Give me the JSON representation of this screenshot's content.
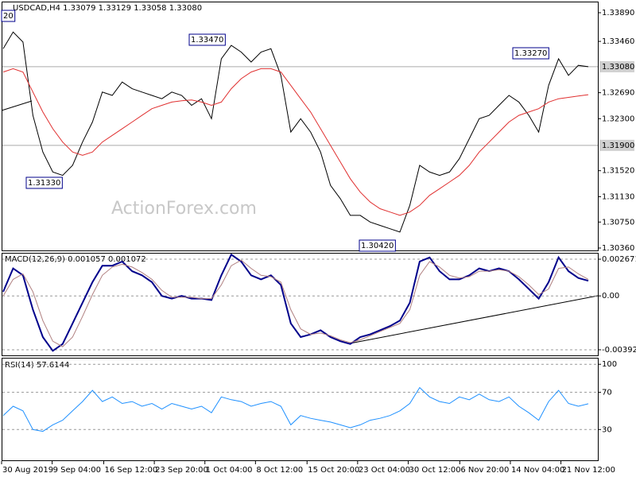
{
  "chart_data": [
    {
      "type": "line",
      "title": "USDCAD,H4 1.33079 1.33129 1.33058 1.33080",
      "watermark": "ActionForex.com",
      "ylim": [
        1.30324,
        1.34057
      ],
      "xlim": [
        0,
        59
      ],
      "yticks": [
        {
          "value": 1.3389,
          "label": "1.33890"
        },
        {
          "value": 1.3346,
          "label": "1.33460"
        },
        {
          "value": 1.3269,
          "label": "1.32690"
        },
        {
          "value": 1.323,
          "label": "1.32300"
        },
        {
          "value": 1.3152,
          "label": "1.31520"
        },
        {
          "value": 1.3113,
          "label": "1.31130"
        },
        {
          "value": 1.3075,
          "label": "1.30750"
        },
        {
          "value": 1.3036,
          "label": "1.30360"
        }
      ],
      "hlines": [
        {
          "value": 1.3308,
          "label": "1.33080"
        },
        {
          "value": 1.319,
          "label": "1.31900"
        }
      ],
      "annotations": [
        "20",
        "1.33470",
        "1.31330",
        "1.30420",
        "1.33270"
      ],
      "series": [
        {
          "color": "#000000",
          "values": [
            1.3335,
            1.336,
            1.3345,
            1.3235,
            1.318,
            1.315,
            1.3145,
            1.316,
            1.3195,
            1.3225,
            1.327,
            1.3265,
            1.3285,
            1.3275,
            1.327,
            1.3265,
            1.326,
            1.327,
            1.3265,
            1.325,
            1.326,
            1.323,
            1.332,
            1.334,
            1.333,
            1.3315,
            1.333,
            1.3335,
            1.3295,
            1.321,
            1.323,
            1.321,
            1.318,
            1.313,
            1.311,
            1.3085,
            1.3085,
            1.3075,
            1.307,
            1.3065,
            1.306,
            1.31,
            1.316,
            1.315,
            1.3145,
            1.315,
            1.317,
            1.32,
            1.323,
            1.3235,
            1.325,
            1.3265,
            1.3255,
            1.3235,
            1.321,
            1.328,
            1.332,
            1.3295,
            1.331,
            1.3308
          ]
        },
        {
          "color": "#e03030",
          "values": [
            1.33,
            1.3305,
            1.33,
            1.327,
            1.324,
            1.3215,
            1.3195,
            1.318,
            1.3175,
            1.318,
            1.3195,
            1.3205,
            1.3215,
            1.3225,
            1.3235,
            1.3245,
            1.325,
            1.3255,
            1.3257,
            1.3258,
            1.3255,
            1.325,
            1.3255,
            1.3275,
            1.329,
            1.33,
            1.3305,
            1.3305,
            1.33,
            1.328,
            1.326,
            1.324,
            1.3215,
            1.319,
            1.3165,
            1.314,
            1.312,
            1.3105,
            1.3095,
            1.309,
            1.3085,
            1.309,
            1.31,
            1.3115,
            1.3125,
            1.3135,
            1.3145,
            1.316,
            1.318,
            1.3195,
            1.321,
            1.3225,
            1.3235,
            1.324,
            1.3245,
            1.3255,
            1.326,
            1.3262,
            1.3264,
            1.3266
          ]
        }
      ]
    },
    {
      "type": "line",
      "title": "MACD(12,26,9) 0.001057 0.001072",
      "ylim": [
        -0.004328,
        0.003135
      ],
      "xlim": [
        0,
        59
      ],
      "yticks": [
        0.002671,
        {
          "value": 0,
          "label": "0.00"
        },
        -0.003922
      ],
      "series": [
        {
          "color": "#00008b",
          "values": [
            0.0003,
            0.002,
            0.0015,
            -0.001,
            -0.003,
            -0.004,
            -0.0035,
            -0.002,
            -0.0005,
            0.001,
            0.0022,
            0.0022,
            0.0025,
            0.0018,
            0.0015,
            0.001,
            0,
            -0.0002,
            0,
            -0.0002,
            -0.0002,
            -0.0003,
            0.0015,
            0.003,
            0.0025,
            0.0015,
            0.0012,
            0.0015,
            0.0008,
            -0.002,
            -0.003,
            -0.0028,
            -0.0025,
            -0.003,
            -0.0033,
            -0.0035,
            -0.003,
            -0.0028,
            -0.0025,
            -0.0022,
            -0.0018,
            -0.0005,
            0.0025,
            0.0028,
            0.0018,
            0.0012,
            0.0012,
            0.0015,
            0.002,
            0.0018,
            0.002,
            0.0018,
            0.0012,
            0.0005,
            -0.0002,
            0.001,
            0.0028,
            0.0018,
            0.0013,
            0.0011
          ]
        },
        {
          "color": "#b08080",
          "values": [
            0,
            0.0012,
            0.0016,
            0.0003,
            -0.0018,
            -0.0033,
            -0.0037,
            -0.003,
            -0.0015,
            0.0001,
            0.0015,
            0.0021,
            0.0023,
            0.0021,
            0.0017,
            0.0012,
            0.0004,
            -0.0001,
            -0.0001,
            -0.0001,
            -0.0002,
            -0.0002,
            0.0008,
            0.0022,
            0.0026,
            0.002,
            0.0015,
            0.0014,
            0.001,
            -0.001,
            -0.0024,
            -0.0028,
            -0.0027,
            -0.0029,
            -0.0032,
            -0.0034,
            -0.0032,
            -0.0029,
            -0.0026,
            -0.0023,
            -0.002,
            -0.001,
            0.0015,
            0.0025,
            0.0021,
            0.0015,
            0.0013,
            0.0014,
            0.0018,
            0.0018,
            0.0019,
            0.0018,
            0.0014,
            0.0008,
            0.0001,
            0.0005,
            0.002,
            0.0021,
            0.0016,
            0.0012
          ]
        }
      ]
    },
    {
      "type": "line",
      "title": "RSI(14) 57.6144",
      "ylim": [
        -3,
        107
      ],
      "xlim": [
        0,
        59
      ],
      "yticks": [
        100,
        70,
        30
      ],
      "xticks": [
        {
          "value": 0,
          "label": "30 Aug 2019"
        },
        {
          "value": 5.1,
          "label": "9 Sep 04:00"
        },
        {
          "value": 10.3,
          "label": "16 Sep 12:00"
        },
        {
          "value": 15.4,
          "label": "23 Sep 20:00"
        },
        {
          "value": 20.5,
          "label": "1 Oct 04:00"
        },
        {
          "value": 25.6,
          "label": "8 Oct 12:00"
        },
        {
          "value": 30.8,
          "label": "15 Oct 20:00"
        },
        {
          "value": 35.9,
          "label": "23 Oct 04:00"
        },
        {
          "value": 41.0,
          "label": "30 Oct 12:00"
        },
        {
          "value": 46.2,
          "label": "6 Nov 20:00"
        },
        {
          "value": 51.3,
          "label": "14 Nov 04:00"
        },
        {
          "value": 56.4,
          "label": "21 Nov 12:00"
        }
      ],
      "series": [
        {
          "color": "#1e90ff",
          "values": [
            45,
            55,
            50,
            30,
            28,
            35,
            40,
            50,
            60,
            72,
            60,
            65,
            58,
            60,
            55,
            58,
            52,
            58,
            55,
            52,
            55,
            48,
            65,
            62,
            60,
            55,
            58,
            60,
            55,
            35,
            45,
            42,
            40,
            38,
            35,
            32,
            35,
            40,
            42,
            45,
            50,
            58,
            75,
            65,
            60,
            58,
            65,
            62,
            68,
            62,
            60,
            65,
            55,
            48,
            40,
            60,
            72,
            58,
            55,
            57.6144
          ]
        }
      ]
    }
  ]
}
